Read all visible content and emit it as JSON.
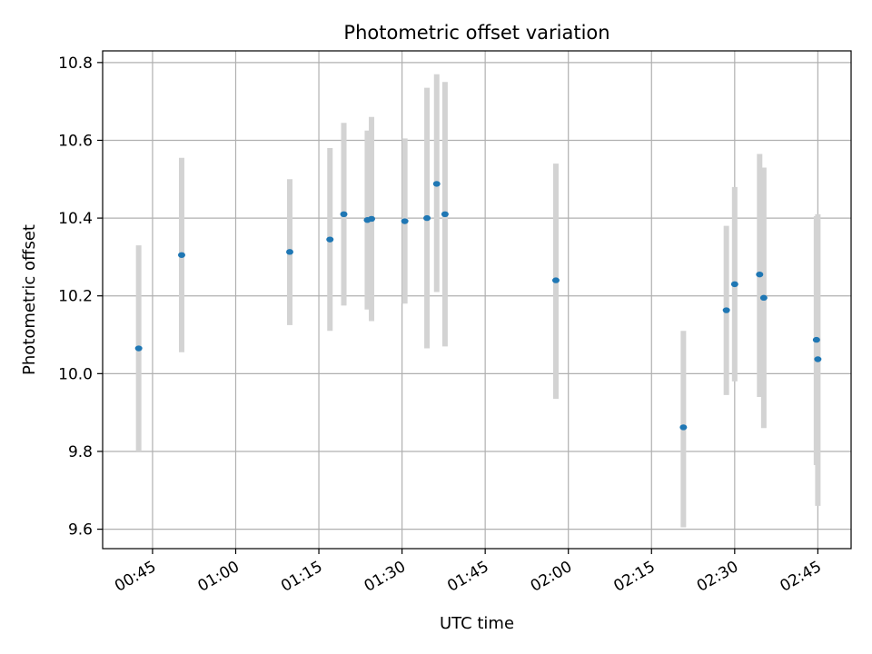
{
  "chart_data": {
    "type": "scatter",
    "title": "Photometric offset variation",
    "xlabel": "UTC time",
    "ylabel": "Photometric offset",
    "xlim": [
      "00:36",
      "02:51"
    ],
    "ylim": [
      9.55,
      10.83
    ],
    "x_ticks": [
      "00:45",
      "01:00",
      "01:15",
      "01:30",
      "01:45",
      "02:00",
      "02:15",
      "02:30",
      "02:45"
    ],
    "y_ticks": [
      9.6,
      9.8,
      10.0,
      10.2,
      10.4,
      10.6,
      10.8
    ],
    "y_tick_labels": [
      "9.6",
      "9.8",
      "10.0",
      "10.2",
      "10.4",
      "10.6",
      "10.8"
    ],
    "grid": true,
    "colors": {
      "point": "#1f77b4",
      "errorbar": "#d3d3d3",
      "grid": "#b0b0b0",
      "axes": "#000000"
    },
    "points": [
      {
        "time": "00:42:30",
        "y": 10.065,
        "err_low": 9.8,
        "err_high": 10.33
      },
      {
        "time": "00:50:15",
        "y": 10.305,
        "err_low": 10.055,
        "err_high": 10.555
      },
      {
        "time": "01:09:45",
        "y": 10.313,
        "err_low": 10.125,
        "err_high": 10.5
      },
      {
        "time": "01:17:00",
        "y": 10.345,
        "err_low": 10.11,
        "err_high": 10.58
      },
      {
        "time": "01:19:30",
        "y": 10.41,
        "err_low": 10.175,
        "err_high": 10.645
      },
      {
        "time": "01:23:45",
        "y": 10.395,
        "err_low": 10.165,
        "err_high": 10.625
      },
      {
        "time": "01:24:30",
        "y": 10.398,
        "err_low": 10.135,
        "err_high": 10.66
      },
      {
        "time": "01:30:30",
        "y": 10.392,
        "err_low": 10.18,
        "err_high": 10.605
      },
      {
        "time": "01:34:30",
        "y": 10.4,
        "err_low": 10.065,
        "err_high": 10.735
      },
      {
        "time": "01:36:15",
        "y": 10.488,
        "err_low": 10.21,
        "err_high": 10.77
      },
      {
        "time": "01:37:45",
        "y": 10.41,
        "err_low": 10.07,
        "err_high": 10.75
      },
      {
        "time": "01:57:45",
        "y": 10.24,
        "err_low": 9.935,
        "err_high": 10.54
      },
      {
        "time": "02:20:45",
        "y": 9.862,
        "err_low": 9.605,
        "err_high": 10.11
      },
      {
        "time": "02:28:30",
        "y": 10.163,
        "err_low": 9.945,
        "err_high": 10.38
      },
      {
        "time": "02:30:00",
        "y": 10.23,
        "err_low": 9.98,
        "err_high": 10.48
      },
      {
        "time": "02:34:30",
        "y": 10.255,
        "err_low": 9.94,
        "err_high": 10.565
      },
      {
        "time": "02:35:15",
        "y": 10.195,
        "err_low": 9.86,
        "err_high": 10.53
      },
      {
        "time": "02:44:45",
        "y": 10.087,
        "err_low": 9.765,
        "err_high": 10.405
      },
      {
        "time": "02:45:00",
        "y": 10.037,
        "err_low": 9.66,
        "err_high": 10.41
      }
    ]
  }
}
